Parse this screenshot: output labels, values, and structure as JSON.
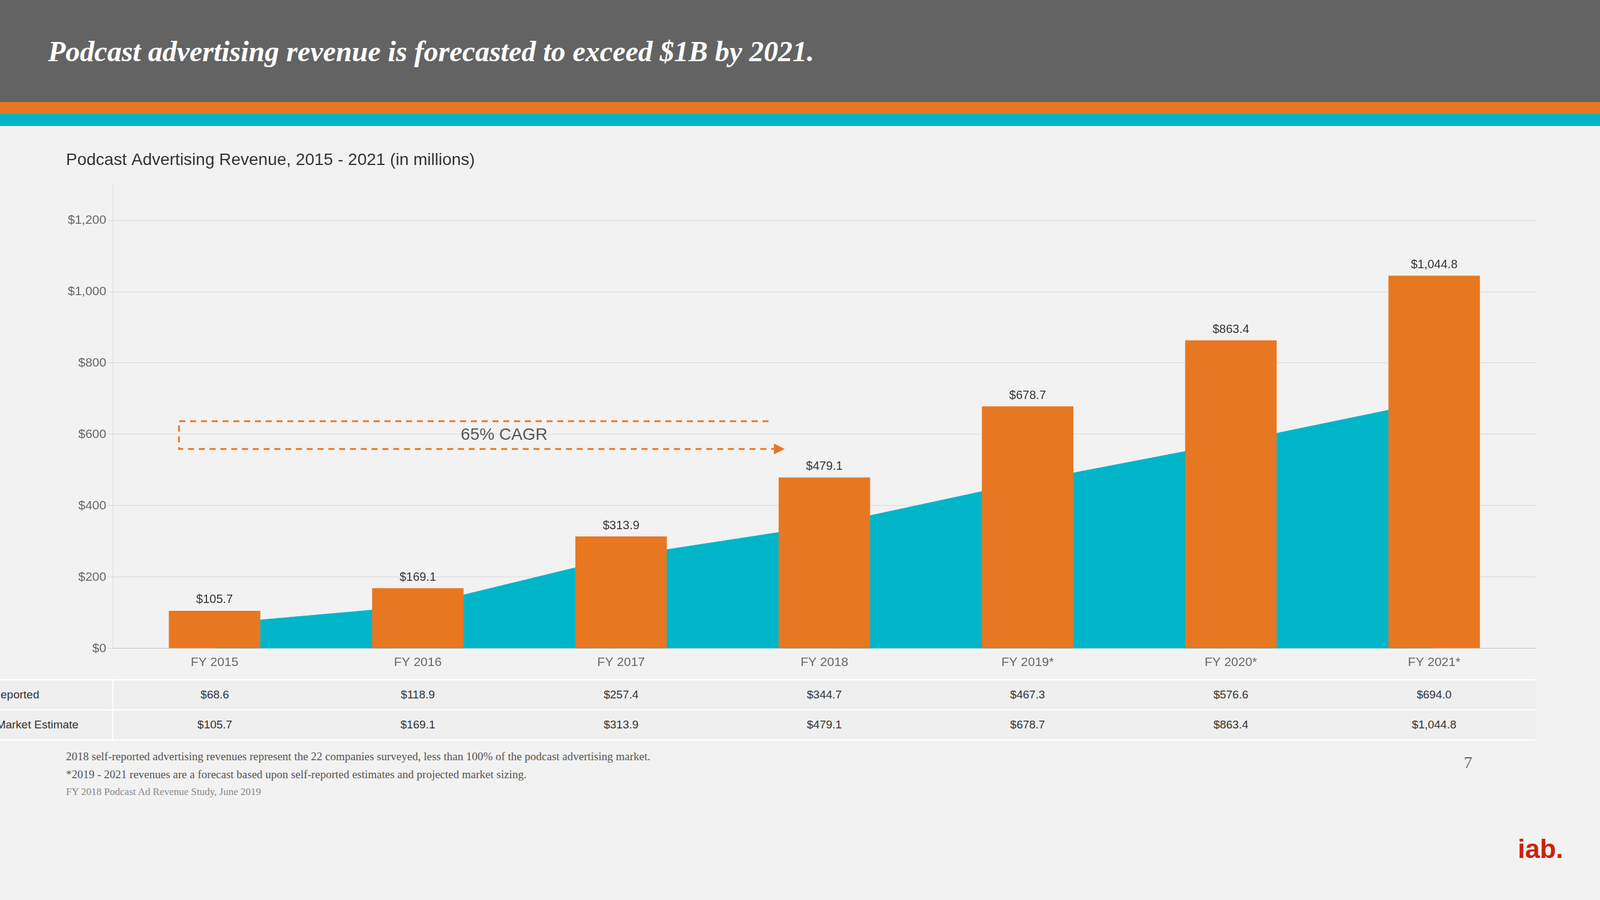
{
  "chart_data": {
    "type": "bar",
    "title": "Podcast Advertising Revenue, 2015 - 2021 (in millions)",
    "subtitle": "Podcast advertising revenue is forecasted to exceed $1B by 2021.",
    "categories": [
      "FY 2015",
      "FY 2016",
      "FY 2017",
      "FY 2018",
      "FY 2019*",
      "FY 2020*",
      "FY 2021*"
    ],
    "series": [
      {
        "name": "Self-Reported",
        "type": "area",
        "color": "#00B5C8",
        "values": [
          68.6,
          118.9,
          257.4,
          344.7,
          467.3,
          576.6,
          694.0
        ],
        "value_labels": [
          "$68.6",
          "$118.9",
          "$257.4",
          "$344.7",
          "$467.3",
          "$576.6",
          "$694.0"
        ]
      },
      {
        "name": "Total Market Estimate",
        "type": "bar",
        "color": "#E87722",
        "values": [
          105.7,
          169.1,
          313.9,
          479.1,
          678.7,
          863.4,
          1044.8
        ],
        "value_labels": [
          "$105.7",
          "$169.1",
          "$313.9",
          "$479.1",
          "$678.7",
          "$863.4",
          "$1,044.8"
        ]
      }
    ],
    "ylim": [
      0,
      1300
    ],
    "yticks": [
      {
        "value": 0,
        "label": "$0"
      },
      {
        "value": 200,
        "label": "$200"
      },
      {
        "value": 400,
        "label": "$400"
      },
      {
        "value": 600,
        "label": "$600"
      },
      {
        "value": 800,
        "label": "$800"
      },
      {
        "value": 1000,
        "label": "$1,000"
      },
      {
        "value": 1200,
        "label": "$1,200"
      }
    ],
    "grid": true,
    "data_labels": true,
    "legend": "bottom",
    "annotations": [
      "65% CAGR",
      "2018 self-reported advertising revenues represent the 22 companies surveyed, less than 100% of the podcast advertising market.",
      "*2019 - 2021 revenues are a forecast based upon self-reported estimates and projected market sizing.",
      "FY 2018 Podcast Ad Revenue Study, June 2019",
      "7",
      "iab."
    ]
  }
}
